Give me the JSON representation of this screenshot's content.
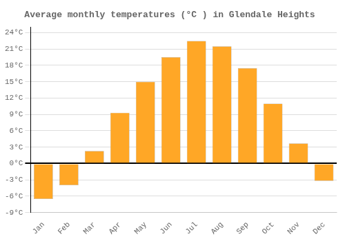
{
  "chart_data": {
    "type": "bar",
    "title": "Average monthly temperatures (°C ) in Glendale Heights",
    "categories": [
      "Jan",
      "Feb",
      "Mar",
      "Apr",
      "May",
      "Jun",
      "Jul",
      "Aug",
      "Sep",
      "Oct",
      "Nov",
      "Dec"
    ],
    "values": [
      -6.5,
      -4.0,
      2.3,
      9.3,
      15.0,
      19.5,
      22.5,
      21.5,
      17.5,
      11.0,
      3.7,
      -3.2
    ],
    "color": "#FFA726",
    "ylim": [
      -9,
      25
    ],
    "yticks": [
      {
        "value": -9,
        "label": "-9°C"
      },
      {
        "value": -6,
        "label": "-6°C"
      },
      {
        "value": -3,
        "label": "-3°C"
      },
      {
        "value": 0,
        "label": "0°C"
      },
      {
        "value": 3,
        "label": "3°C"
      },
      {
        "value": 6,
        "label": "6°C"
      },
      {
        "value": 9,
        "label": "9°C"
      },
      {
        "value": 12,
        "label": "12°C"
      },
      {
        "value": 15,
        "label": "15°C"
      },
      {
        "value": 18,
        "label": "18°C"
      },
      {
        "value": 21,
        "label": "21°C"
      },
      {
        "value": 24,
        "label": "24°C"
      }
    ],
    "grid": true
  }
}
